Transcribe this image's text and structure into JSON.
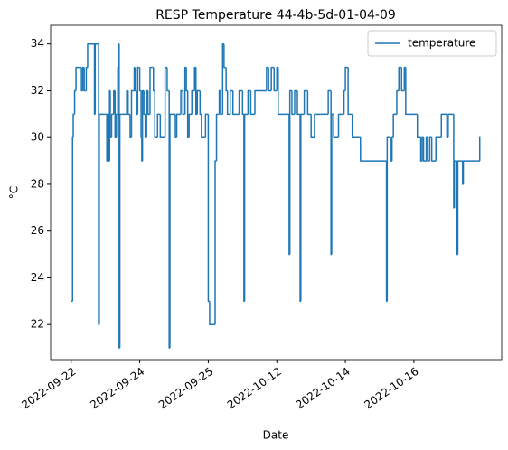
{
  "chart_data": {
    "type": "line",
    "drawstyle": "steps-post",
    "title": "RESP Temperature 44-4b-5d-01-04-09",
    "xlabel": "Date",
    "ylabel": "°C",
    "legend": "upper right",
    "xlim": [
      -30,
      628
    ],
    "ylim": [
      20.5,
      34.8
    ],
    "xticks": [
      {
        "value": 0,
        "label": "2022-09-22"
      },
      {
        "value": 100,
        "label": "2022-09-24"
      },
      {
        "value": 200,
        "label": "2022-09-25"
      },
      {
        "value": 300,
        "label": "2022-10-12"
      },
      {
        "value": 400,
        "label": "2022-10-14"
      },
      {
        "value": 500,
        "label": "2022-10-16"
      }
    ],
    "yticks": [
      22,
      24,
      26,
      28,
      30,
      32,
      34
    ],
    "x": [
      0,
      2,
      3,
      5,
      7,
      15,
      17,
      19,
      22,
      24,
      34,
      35,
      38,
      40,
      41,
      50,
      52,
      53,
      55,
      56,
      57,
      59,
      62,
      64,
      66,
      68,
      69,
      70,
      71,
      80,
      81,
      83,
      86,
      88,
      92,
      93,
      95,
      97,
      100,
      102,
      103,
      104,
      106,
      108,
      110,
      112,
      115,
      118,
      120,
      122,
      126,
      130,
      136,
      137,
      140,
      143,
      144,
      150,
      152,
      154,
      160,
      163,
      166,
      168,
      170,
      172,
      176,
      180,
      182,
      184,
      188,
      190,
      196,
      200,
      202,
      210,
      212,
      216,
      218,
      221,
      223,
      226,
      228,
      232,
      236,
      245,
      250,
      252,
      253,
      258,
      262,
      268,
      285,
      288,
      292,
      296,
      300,
      302,
      312,
      318,
      319,
      322,
      326,
      330,
      334,
      335,
      340,
      345,
      350,
      355,
      364,
      375,
      379,
      380,
      383,
      390,
      398,
      400,
      404,
      410,
      420,
      422,
      460,
      461,
      466,
      468,
      470,
      475,
      478,
      482,
      486,
      488,
      502,
      505,
      510,
      512,
      514,
      518,
      520,
      523,
      526,
      532,
      540,
      545,
      548,
      550,
      558,
      559,
      563,
      564,
      571,
      572,
      596,
      597
    ],
    "series": [
      {
        "name": "temperature",
        "color": "#1f77b4",
        "values": [
          23,
          30,
          31,
          32,
          33,
          32,
          33,
          32,
          33,
          34,
          31,
          34,
          34,
          22,
          31,
          31,
          29,
          31,
          29,
          32,
          30,
          31,
          32,
          30,
          31,
          33,
          34,
          21,
          31,
          31,
          32,
          31,
          30,
          32,
          33,
          32,
          31,
          33,
          32,
          30,
          29,
          32,
          31,
          30,
          32,
          31,
          33,
          33,
          32,
          30,
          31,
          30,
          30,
          33,
          32,
          21,
          31,
          31,
          30,
          31,
          32,
          31,
          33,
          32,
          30,
          31,
          32,
          33,
          31,
          32,
          31,
          30,
          31,
          23,
          22,
          29,
          31,
          32,
          31,
          34,
          33,
          32,
          31,
          32,
          31,
          32,
          31,
          23,
          31,
          32,
          31,
          32,
          33,
          32,
          33,
          32,
          33,
          31,
          31,
          25,
          32,
          31,
          32,
          31,
          23,
          31,
          32,
          31,
          30,
          31,
          31,
          32,
          25,
          31,
          30,
          31,
          32,
          33,
          31,
          30,
          30,
          29,
          23,
          30,
          29,
          30,
          31,
          32,
          33,
          32,
          33,
          31,
          31,
          30,
          29,
          30,
          29,
          30,
          29,
          30,
          29,
          30,
          31,
          31,
          30,
          31,
          27,
          29,
          25,
          29,
          28,
          29,
          30,
          30
        ]
      }
    ]
  }
}
